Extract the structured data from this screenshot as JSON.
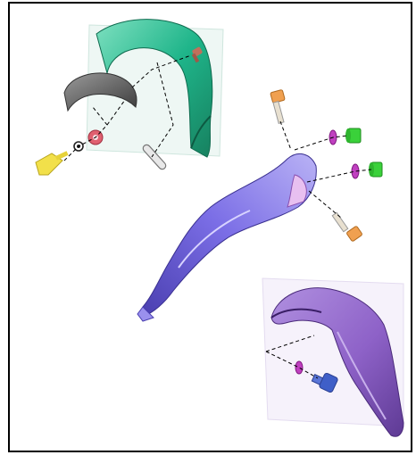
{
  "diagram": {
    "type": "exploded-parts-diagram",
    "labels": [],
    "colors": {
      "frame": "#000000",
      "background": "#ffffff",
      "front_fender": "#1fb58a",
      "fender_dark": "#17805f",
      "mud_guard": "#6e6e6e",
      "rear_fender": "#7b6ee6",
      "rear_fender_dark": "#4a3fb0",
      "tail_piece": "#8e62c8",
      "tail_dark": "#5e3a94",
      "bolt_orange": "#f0a050",
      "grommet_magenta": "#c040c0",
      "nut_green": "#3ad13a",
      "bolt_yellow": "#f2e04a",
      "washer_red": "#e06070",
      "bolt_blue": "#3f5fc8",
      "leader_line": "#000000"
    }
  }
}
